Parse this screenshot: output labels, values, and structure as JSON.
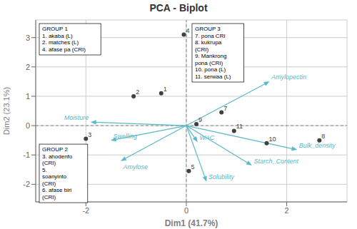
{
  "chart_data": {
    "type": "scatter",
    "title": "PCA - Biplot",
    "xlabel": "Dim1 (41.7%)",
    "ylabel": "Dim2 (23.1%)",
    "xlim": [
      -3.0,
      3.2
    ],
    "ylim": [
      -2.6,
      3.6
    ],
    "xticks": [
      -2,
      0,
      2
    ],
    "yticks": [
      -2,
      -1,
      0,
      1,
      2,
      3
    ],
    "grid": true,
    "series": [
      {
        "type": "scatter",
        "color": "#404040",
        "labels": [
          "1",
          "2",
          "3",
          "4",
          "5",
          "7",
          "8",
          "9",
          "10",
          "11"
        ],
        "x": [
          -0.5,
          -1.05,
          -2.0,
          -0.05,
          0.05,
          0.7,
          2.65,
          0.2,
          1.6,
          0.95
        ],
        "values": [
          1.1,
          1.0,
          -0.45,
          3.1,
          -1.55,
          0.45,
          -0.5,
          0.05,
          -0.6,
          -0.18
        ]
      },
      {
        "type": "arrow",
        "color": "#5ab8c8",
        "labels": [
          "Amylopectin",
          "Moisture",
          "Swelling",
          "Amylose",
          "WAC",
          "Solubility",
          "Bulk_density",
          "Starch_Content"
        ],
        "x": [
          1.65,
          -1.9,
          -1.5,
          -1.3,
          0.22,
          0.4,
          2.2,
          1.3
        ],
        "values": [
          1.5,
          0.12,
          -0.5,
          -1.2,
          -0.55,
          -1.9,
          -0.82,
          -1.35
        ]
      }
    ],
    "annotations": [
      "GROUP 1\n1. akaba (L)\n2. matches (L)\n4. afase pa (CRI)",
      "GROUP 2\n3. ahodenfo\n(CRI)\n5.\nsoanyinto\n(CRI)\n6. afase biri\n(CRI)",
      "GROUP 3\n7. pona CRI\n8. kukrupa\n(CRI)\n9. Mankrong\npona (CRI)\n10. pona (L)\n11. serwaa (L)"
    ]
  }
}
